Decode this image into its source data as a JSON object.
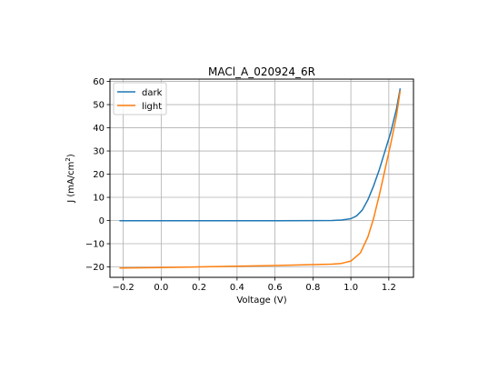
{
  "chart_data": {
    "type": "line",
    "title": "MACl_A_020924_6R",
    "xlabel": "Voltage (V)",
    "ylabel_main": "J (mA/cm",
    "ylabel_sup": "2",
    "ylabel_end": ")",
    "xlim": [
      -0.27,
      1.33
    ],
    "ylim": [
      -24.5,
      61
    ],
    "xticks": [
      -0.2,
      0.0,
      0.2,
      0.4,
      0.6,
      0.8,
      1.0,
      1.2
    ],
    "xtick_labels": [
      "−0.2",
      "0.0",
      "0.2",
      "0.4",
      "0.6",
      "0.8",
      "1.0",
      "1.2"
    ],
    "yticks": [
      -20,
      -10,
      0,
      10,
      20,
      30,
      40,
      50,
      60
    ],
    "ytick_labels": [
      "−20",
      "−10",
      "0",
      "10",
      "20",
      "30",
      "40",
      "50",
      "60"
    ],
    "grid": true,
    "legend_position": "top-left",
    "series": [
      {
        "name": "dark",
        "color": "#1f77b4",
        "x": [
          -0.22,
          0.0,
          0.2,
          0.4,
          0.6,
          0.8,
          0.9,
          0.95,
          1.0,
          1.03,
          1.06,
          1.09,
          1.12,
          1.15,
          1.18,
          1.21,
          1.24,
          1.26
        ],
        "y": [
          -0.1,
          -0.1,
          -0.1,
          -0.1,
          -0.1,
          -0.05,
          0.0,
          0.2,
          0.8,
          2.0,
          4.5,
          9.0,
          15.0,
          22.0,
          30.0,
          38.0,
          48.0,
          57.0
        ]
      },
      {
        "name": "light",
        "color": "#ff7f0e",
        "x": [
          -0.22,
          0.0,
          0.2,
          0.4,
          0.6,
          0.8,
          0.9,
          0.95,
          1.0,
          1.05,
          1.09,
          1.12,
          1.15,
          1.18,
          1.21,
          1.24,
          1.26
        ],
        "y": [
          -20.5,
          -20.3,
          -20.0,
          -19.7,
          -19.4,
          -19.0,
          -18.8,
          -18.5,
          -17.5,
          -14.0,
          -7.0,
          1.0,
          11.0,
          22.0,
          33.0,
          45.0,
          56.0
        ]
      }
    ]
  }
}
